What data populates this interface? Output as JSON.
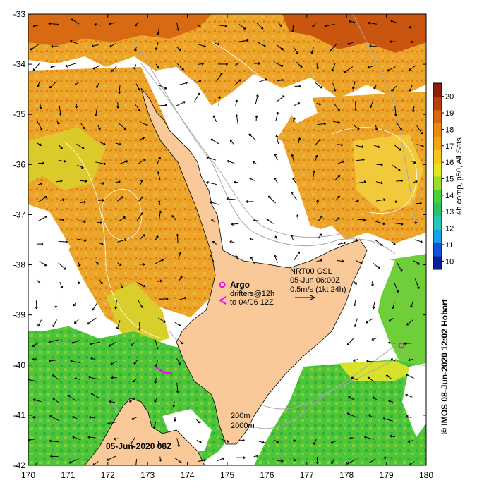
{
  "map": {
    "date_label": "05-Jun-2020 08Z",
    "lon_ticks": [
      "170",
      "171",
      "172",
      "173",
      "174",
      "175",
      "176",
      "177",
      "178",
      "179",
      "180"
    ],
    "lat_ticks": [
      "-33",
      "-34",
      "-35",
      "-36",
      "-37",
      "-38",
      "-39",
      "-40",
      "-41",
      "-42"
    ],
    "lon_range": [
      170,
      180
    ],
    "lat_range": [
      -42,
      -33
    ],
    "annotations": {
      "argo_label": "Argo",
      "drifters_line1": "drifters@12h",
      "drifters_line2": "to 04/06 12Z",
      "nrt_line1": "NRT00 GSL",
      "nrt_line2": "05-Jun 06:00Z",
      "nrt_line3": "0.5m/s (1kt 24h)",
      "depth_200": "200m",
      "depth_2000": "2000m"
    }
  },
  "colorbar": {
    "title": "4h comp, p50, All Sats",
    "ticks": [
      "20",
      "19",
      "18",
      "17",
      "16",
      "15",
      "14",
      "13",
      "12",
      "11",
      "10"
    ],
    "range": [
      9.5,
      20.8
    ],
    "colors": [
      "#0a1f9e",
      "#1550d8",
      "#17a0e8",
      "#27c7b8",
      "#2fbf6a",
      "#4ad13a",
      "#9bdc2a",
      "#e3e81e",
      "#f4c71a",
      "#f0a418",
      "#e78a12",
      "#d8670f",
      "#b8400e",
      "#8c1f0c"
    ]
  },
  "credit": "© IMOS 08-Jun-2020 12:02 Hobart",
  "colors": {
    "land": "#f9c999",
    "orange_sst": "#e99c1b",
    "yellow_sst": "#d9d226",
    "green_sst": "#4bc83a",
    "argo_marker": "#ff00ff"
  }
}
